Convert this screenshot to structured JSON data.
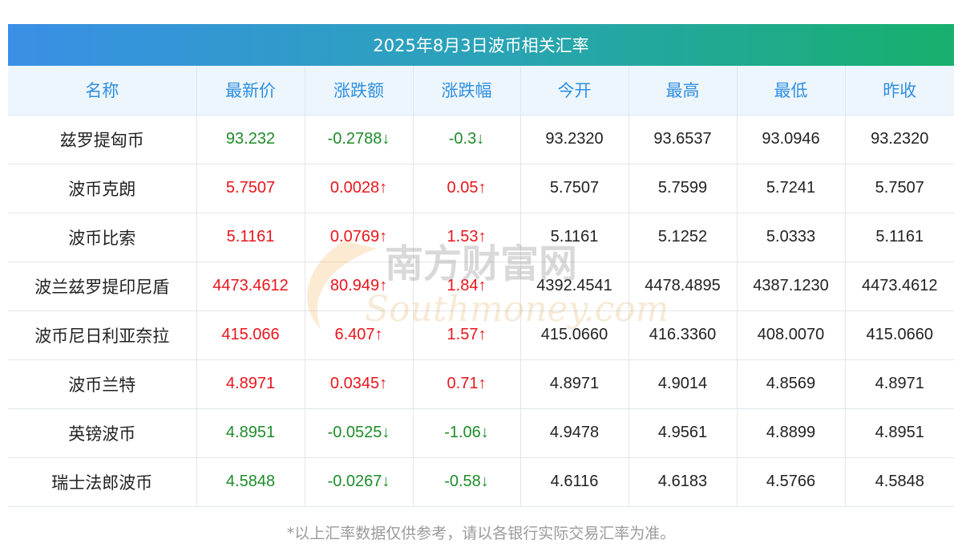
{
  "title": "2025年8月3日波币相关汇率",
  "headers": [
    "名称",
    "最新价",
    "涨跌额",
    "涨跌幅",
    "今开",
    "最高",
    "最低",
    "昨收"
  ],
  "rows": [
    {
      "name": "兹罗提匈币",
      "latest": "93.232",
      "change": "-0.2788↓",
      "pct": "-0.3↓",
      "open": "93.2320",
      "high": "93.6537",
      "low": "93.0946",
      "prev": "93.2320",
      "trend": "down"
    },
    {
      "name": "波币克朗",
      "latest": "5.7507",
      "change": "0.0028↑",
      "pct": "0.05↑",
      "open": "5.7507",
      "high": "5.7599",
      "low": "5.7241",
      "prev": "5.7507",
      "trend": "up"
    },
    {
      "name": "波币比索",
      "latest": "5.1161",
      "change": "0.0769↑",
      "pct": "1.53↑",
      "open": "5.1161",
      "high": "5.1252",
      "low": "5.0333",
      "prev": "5.1161",
      "trend": "up"
    },
    {
      "name": "波兰兹罗提印尼盾",
      "latest": "4473.4612",
      "change": "80.949↑",
      "pct": "1.84↑",
      "open": "4392.4541",
      "high": "4478.4895",
      "low": "4387.1230",
      "prev": "4473.4612",
      "trend": "up"
    },
    {
      "name": "波币尼日利亚奈拉",
      "latest": "415.066",
      "change": "6.407↑",
      "pct": "1.57↑",
      "open": "415.0660",
      "high": "416.3360",
      "low": "408.0070",
      "prev": "415.0660",
      "trend": "up"
    },
    {
      "name": "波币兰特",
      "latest": "4.8971",
      "change": "0.0345↑",
      "pct": "0.71↑",
      "open": "4.8971",
      "high": "4.9014",
      "low": "4.8569",
      "prev": "4.8971",
      "trend": "up"
    },
    {
      "name": "英镑波币",
      "latest": "4.8951",
      "change": "-0.0525↓",
      "pct": "-1.06↓",
      "open": "4.9478",
      "high": "4.9561",
      "low": "4.8899",
      "prev": "4.8951",
      "trend": "down"
    },
    {
      "name": "瑞士法郎波币",
      "latest": "4.5848",
      "change": "-0.0267↓",
      "pct": "-0.58↓",
      "open": "4.6116",
      "high": "4.6183",
      "low": "4.5766",
      "prev": "4.5848",
      "trend": "down"
    }
  ],
  "watermark": {
    "cn": "南方财富网",
    "en": "Southmoney.com"
  },
  "footnote": "*以上汇率数据仅供参考，请以各银行实际交易汇率为准。",
  "colors": {
    "up": "#e8161c",
    "down": "#1e8c2a",
    "header_text": "#2f8fe0"
  }
}
